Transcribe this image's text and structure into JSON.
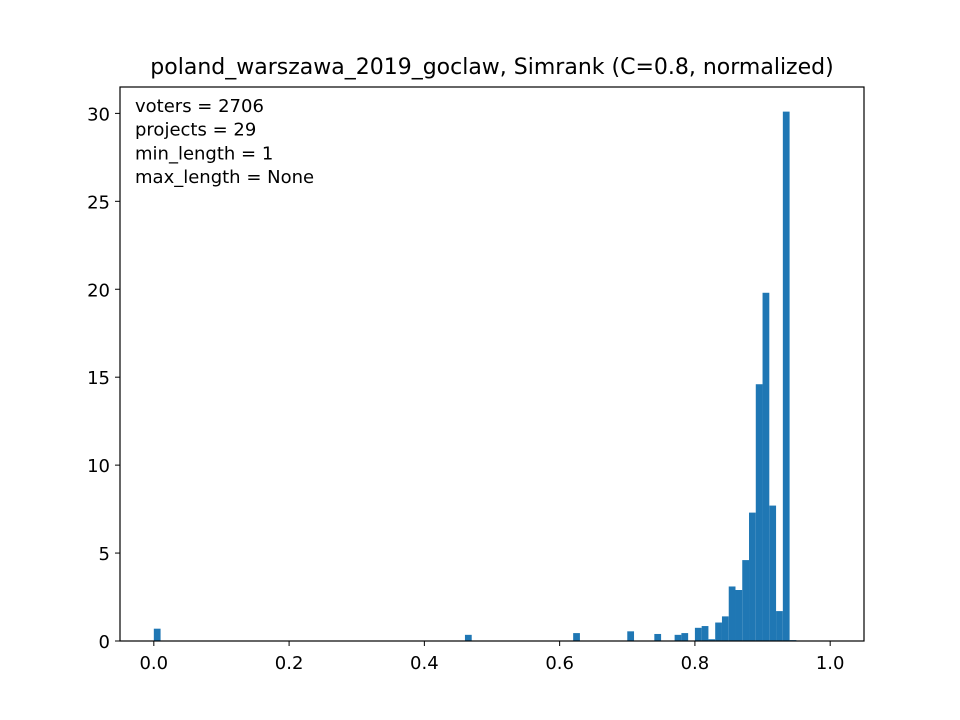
{
  "chart_data": {
    "type": "bar",
    "title": "poland_warszawa_2019_goclaw, Simrank (C=0.8, normalized)",
    "xlabel": "",
    "ylabel": "",
    "xlim": [
      -0.05,
      1.05
    ],
    "ylim": [
      0,
      31.5
    ],
    "grid": false,
    "legend": "none",
    "bar_color": "#1f77b4",
    "bin_width": 0.01,
    "annotations": [
      "voters = 2706",
      "projects = 29",
      "min_length = 1",
      "max_length = None"
    ],
    "x_ticks": [
      {
        "value": 0.0,
        "label": "0.0"
      },
      {
        "value": 0.2,
        "label": "0.2"
      },
      {
        "value": 0.4,
        "label": "0.4"
      },
      {
        "value": 0.6,
        "label": "0.6"
      },
      {
        "value": 0.8,
        "label": "0.8"
      },
      {
        "value": 1.0,
        "label": "1.0"
      }
    ],
    "y_ticks": [
      {
        "value": 0,
        "label": "0"
      },
      {
        "value": 5,
        "label": "5"
      },
      {
        "value": 10,
        "label": "10"
      },
      {
        "value": 15,
        "label": "15"
      },
      {
        "value": 20,
        "label": "20"
      },
      {
        "value": 25,
        "label": "25"
      },
      {
        "value": 30,
        "label": "30"
      }
    ],
    "bins": [
      {
        "x": 0.0,
        "value": 0.7
      },
      {
        "x": 0.46,
        "value": 0.35
      },
      {
        "x": 0.62,
        "value": 0.45
      },
      {
        "x": 0.7,
        "value": 0.55
      },
      {
        "x": 0.74,
        "value": 0.4
      },
      {
        "x": 0.77,
        "value": 0.35
      },
      {
        "x": 0.78,
        "value": 0.45
      },
      {
        "x": 0.8,
        "value": 0.75
      },
      {
        "x": 0.81,
        "value": 0.85
      },
      {
        "x": 0.82,
        "value": 0.1
      },
      {
        "x": 0.83,
        "value": 1.05
      },
      {
        "x": 0.84,
        "value": 1.4
      },
      {
        "x": 0.85,
        "value": 3.1
      },
      {
        "x": 0.86,
        "value": 2.9
      },
      {
        "x": 0.87,
        "value": 4.6
      },
      {
        "x": 0.88,
        "value": 7.3
      },
      {
        "x": 0.89,
        "value": 14.6
      },
      {
        "x": 0.9,
        "value": 19.8
      },
      {
        "x": 0.91,
        "value": 7.7
      },
      {
        "x": 0.92,
        "value": 1.7
      },
      {
        "x": 0.93,
        "value": 30.1
      },
      {
        "x": 0.94,
        "value": 0.05
      }
    ]
  }
}
